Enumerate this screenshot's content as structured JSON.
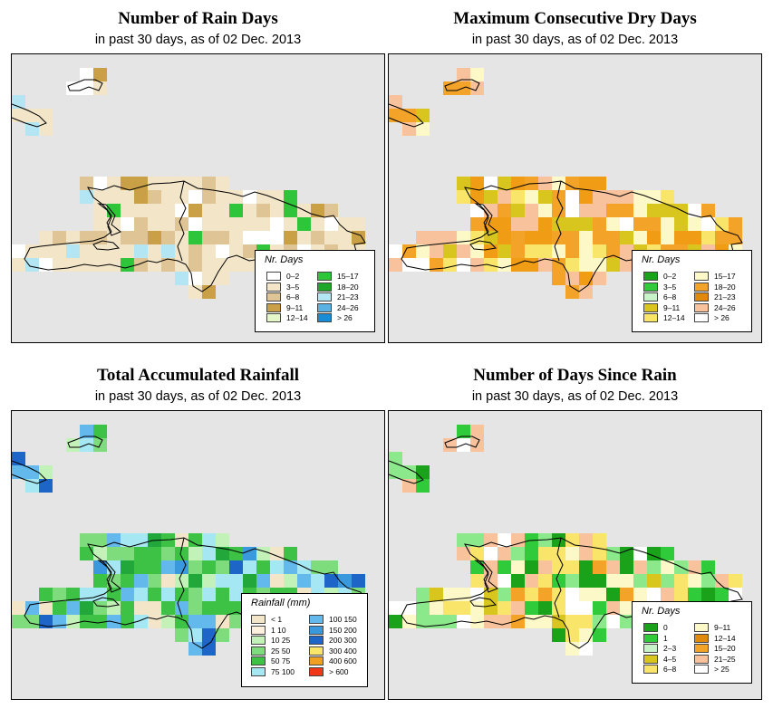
{
  "panels": [
    {
      "id": "rain-days",
      "title": "Number of Rain Days",
      "subtitle": "in past 30 days, as of  02 Dec. 2013",
      "legend_title": "Nr. Days",
      "palette": [
        "#ffffff",
        "#f3e5c8",
        "#dfc595",
        "#c9a046",
        "#eff3c7",
        "#e5f6c9",
        "#2ec53a",
        "#1fa72a",
        "#b3e6f2",
        "#5ab2e3",
        "#1b8bd3"
      ],
      "legend": [
        {
          "label": "0–2",
          "color": "#ffffff"
        },
        {
          "label": "3–5",
          "color": "#f3e5c8"
        },
        {
          "label": "6–8",
          "color": "#dfc595"
        },
        {
          "label": "9–11",
          "color": "#c9a046"
        },
        {
          "label": "12–14",
          "color": "#e5f6c9"
        },
        {
          "label": "15–17",
          "color": "#2ec53a"
        },
        {
          "label": "18–20",
          "color": "#1fa72a"
        },
        {
          "label": "21–23",
          "color": "#b3e6f2"
        },
        {
          "label": "24–26",
          "color": "#5ab2e3"
        },
        {
          "label": "> 26",
          "color": "#1b8bd3"
        }
      ]
    },
    {
      "id": "max-dry-days",
      "title": "Maximum Consecutive Dry Days",
      "subtitle": "in past 30 days, as of  02 Dec. 2013",
      "legend_title": "Nr. Days",
      "palette": [
        "#ffffff",
        "#fdf8c7",
        "#f8e56a",
        "#d8c51d",
        "#f3a328",
        "#f09c14",
        "#f8c29c",
        "#c8e8c8",
        "#2fcb3a",
        "#1aa31a",
        "#a8eeb0"
      ],
      "legend": [
        {
          "label": "0–2",
          "color": "#1aa31a"
        },
        {
          "label": "3–5",
          "color": "#2fcb3a"
        },
        {
          "label": "6–8",
          "color": "#c8f2c8"
        },
        {
          "label": "9–11",
          "color": "#d8c51d"
        },
        {
          "label": "12–14",
          "color": "#f8e56a"
        },
        {
          "label": "15–17",
          "color": "#fdf8c7"
        },
        {
          "label": "18–20",
          "color": "#f3a328"
        },
        {
          "label": "21–23",
          "color": "#e08a0c"
        },
        {
          "label": "24–26",
          "color": "#f8c29c"
        },
        {
          "label": "> 26",
          "color": "#ffffff"
        }
      ]
    },
    {
      "id": "total-rainfall",
      "title": "Total Accumulated Rainfall",
      "subtitle": "in past 30 days, as of  02 Dec. 2013",
      "legend_title": "Rainfall (mm)",
      "palette": [
        "#ffffff",
        "#f3e5c8",
        "#c3f2b8",
        "#7fdc7c",
        "#3dc246",
        "#22a83a",
        "#a5e7f2",
        "#63b8ec",
        "#3a98dc",
        "#1d66c8",
        "#e5e5e5"
      ],
      "legend": [
        {
          "label": "< 1",
          "color": "#f3e5c8"
        },
        {
          "label": "1   10",
          "color": "#fdf0dc"
        },
        {
          "label": "10   25",
          "color": "#c3f2b8"
        },
        {
          "label": "25   50",
          "color": "#7fdc7c"
        },
        {
          "label": "50   75",
          "color": "#3dc246"
        },
        {
          "label": "75  100",
          "color": "#a5e7f2"
        },
        {
          "label": "100  150",
          "color": "#63b8ec"
        },
        {
          "label": "150  200",
          "color": "#3a98dc"
        },
        {
          "label": "200  300",
          "color": "#1d66c8"
        },
        {
          "label": "300  400",
          "color": "#f8e56a"
        },
        {
          "label": "400  600",
          "color": "#f0a020"
        },
        {
          "label": "> 600",
          "color": "#f03818"
        }
      ]
    },
    {
      "id": "days-since-rain",
      "title": "Number of Days Since Rain",
      "subtitle": "in past 30 days, as of  02 Dec. 2013",
      "legend_title": "Nr. Days",
      "palette": [
        "#ffffff",
        "#fdf8c7",
        "#f8e56a",
        "#d8c51d",
        "#f8c29c",
        "#f3a328",
        "#c8f2c8",
        "#2fcb3a",
        "#1aa31a",
        "#8be88b",
        "#ffffff"
      ],
      "legend": [
        {
          "label": "0",
          "color": "#1aa31a"
        },
        {
          "label": "1",
          "color": "#2fcb3a"
        },
        {
          "label": "2–3",
          "color": "#c8f2c8"
        },
        {
          "label": "4–5",
          "color": "#d8c51d"
        },
        {
          "label": "6–8",
          "color": "#f8e56a"
        },
        {
          "label": "9–11",
          "color": "#fdf8c7"
        },
        {
          "label": "12–14",
          "color": "#e08a0c"
        },
        {
          "label": "15–20",
          "color": "#f3a328"
        },
        {
          "label": "21–25",
          "color": "#f8c29c"
        },
        {
          "label": "> 25",
          "color": "#ffffff"
        }
      ]
    }
  ]
}
